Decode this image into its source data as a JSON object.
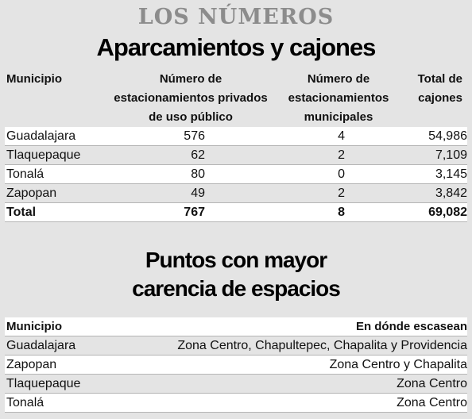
{
  "header": {
    "label": "LOS NÚMEROS",
    "title": "Aparcamientos y cajones"
  },
  "table1": {
    "columns": [
      "Municipio",
      "Número de estacionamientos privados de uso público",
      "Número de estacionamientos municipales",
      "Total de cajones"
    ],
    "rows": [
      [
        "Guadalajara",
        "576",
        "4",
        "54,986"
      ],
      [
        "Tlaquepaque",
        "62",
        "2",
        "7,109"
      ],
      [
        "Tonalá",
        "80",
        "0",
        "3,145"
      ],
      [
        "Zapopan",
        "49",
        "2",
        "3,842"
      ]
    ],
    "total": [
      "Total",
      "767",
      "8",
      "69,082"
    ]
  },
  "table2": {
    "title": [
      "Puntos con mayor",
      "carencia de espacios"
    ],
    "columns": [
      "Municipio",
      "En dónde escasean"
    ],
    "rows": [
      [
        "Guadalajara",
        "Zona Centro, Chapultepec, Chapalita y Providencia"
      ],
      [
        "Zapopan",
        "Zona Centro y Chapalita"
      ],
      [
        "Tlaquepaque",
        "Zona Centro"
      ],
      [
        "Tonalá",
        "Zona Centro"
      ]
    ]
  }
}
